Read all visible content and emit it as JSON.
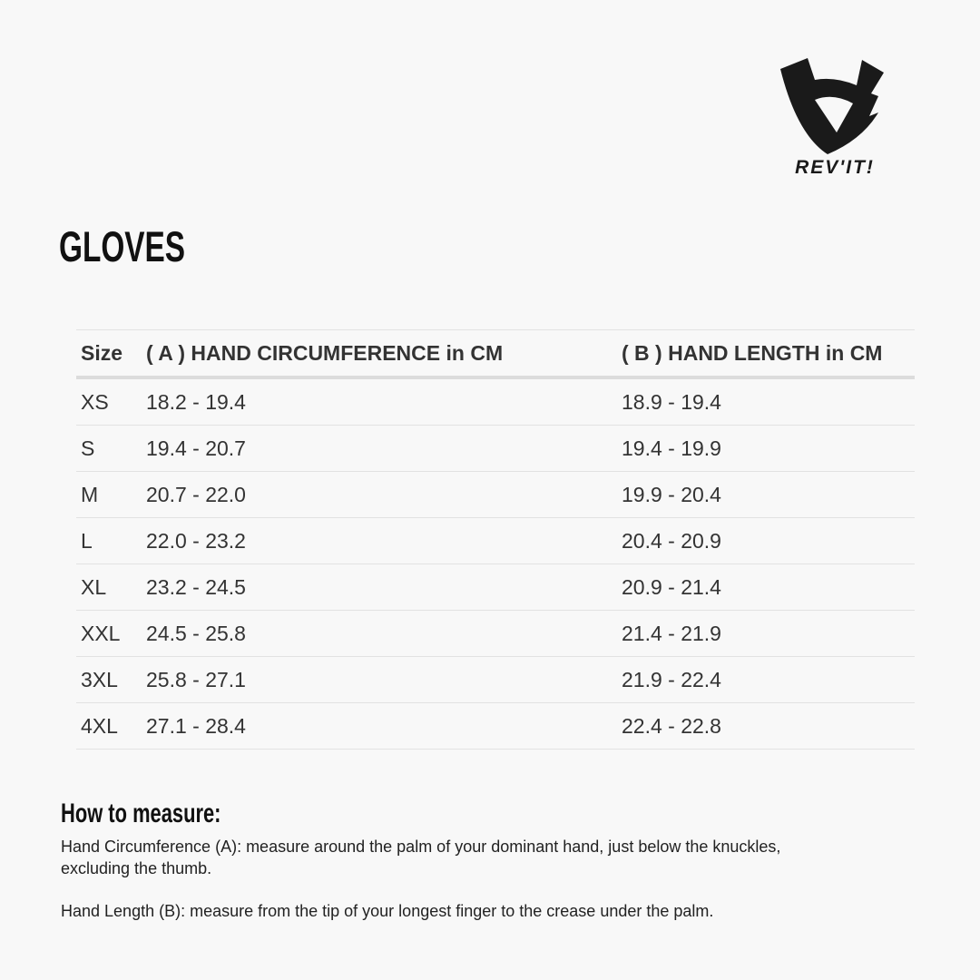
{
  "brand": {
    "logo_text": "REV'IT!"
  },
  "title": "GLOVES",
  "table": {
    "headers": [
      "Size",
      "( A ) HAND CIRCUMFERENCE in CM",
      "( B ) HAND LENGTH in CM"
    ],
    "rows": [
      [
        "XS",
        "18.2 - 19.4",
        "18.9 - 19.4"
      ],
      [
        "S",
        "19.4 - 20.7",
        "19.4 - 19.9"
      ],
      [
        "M",
        "20.7 - 22.0",
        "19.9 - 20.4"
      ],
      [
        "L",
        "22.0 - 23.2",
        "20.4 - 20.9"
      ],
      [
        "XL",
        "23.2 - 24.5",
        "20.9 - 21.4"
      ],
      [
        "XXL",
        "24.5 - 25.8",
        "21.4 - 21.9"
      ],
      [
        "3XL",
        "25.8 - 27.1",
        "21.9 - 22.4"
      ],
      [
        "4XL",
        "27.1 - 28.4",
        "22.4 - 22.8"
      ]
    ]
  },
  "how_to": {
    "heading": "How to measure:",
    "circumference_line1": "Hand Circumference (A): measure around the palm of your dominant hand, just below the knuckles,",
    "circumference_line2": "excluding the thumb.",
    "length": "Hand Length (B): measure from the tip of your longest finger to the crease under the palm."
  }
}
